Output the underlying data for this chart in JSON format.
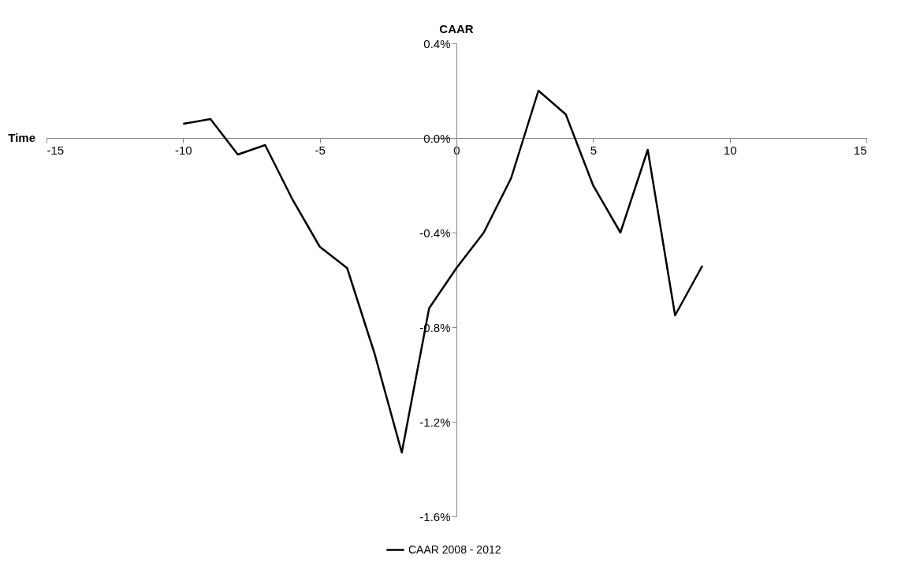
{
  "chart_data": {
    "type": "line",
    "xlabel": "Time",
    "ylabel": "CAAR",
    "x": [
      -10,
      -9,
      -8,
      -7,
      -6,
      -5,
      -4,
      -3,
      -2,
      -1,
      0,
      1,
      2,
      3,
      4,
      5,
      6,
      7,
      8,
      9
    ],
    "series": [
      {
        "name": "CAAR 2008 - 2012",
        "color": "#000000",
        "values": [
          0.06,
          0.08,
          -0.07,
          -0.03,
          -0.26,
          -0.46,
          -0.55,
          -0.91,
          -1.33,
          -0.72,
          -0.55,
          -0.4,
          -0.17,
          0.2,
          0.1,
          -0.2,
          -0.4,
          -0.05,
          -0.75,
          -0.54
        ]
      }
    ],
    "xlim": [
      -15,
      15
    ],
    "xticks": [
      -15,
      -10,
      -5,
      0,
      5,
      10,
      15
    ],
    "ylim": [
      -1.6,
      0.4
    ],
    "yticks": [
      {
        "value": -1.6,
        "label": "-1.6%"
      },
      {
        "value": -1.2,
        "label": "-1.2%"
      },
      {
        "value": -0.8,
        "label": "-0.8%"
      },
      {
        "value": -0.4,
        "label": "-0.4%"
      },
      {
        "value": 0.0,
        "label": "0.0%"
      },
      {
        "value": 0.4,
        "label": "0.4%"
      }
    ],
    "grid": false,
    "legend": "bottom",
    "marker": "none",
    "line_style": "solid"
  }
}
